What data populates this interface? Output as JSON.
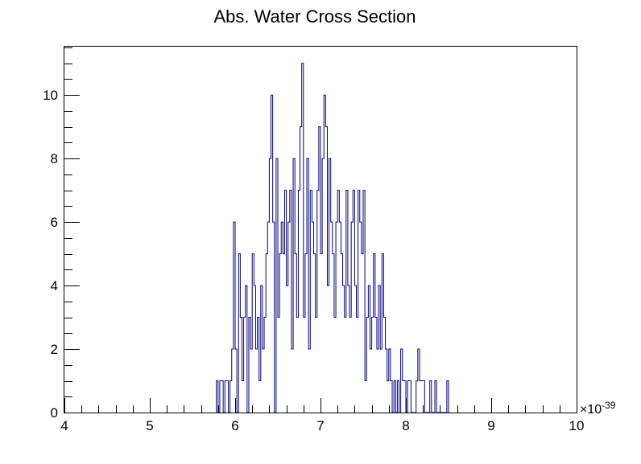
{
  "chart_data": {
    "type": "histogram",
    "title": "Abs. Water Cross Section",
    "xlabel": "",
    "ylabel": "",
    "x_multiplier_label": "×10",
    "x_multiplier_exponent": "-39",
    "xlim": [
      4,
      10
    ],
    "ylim": [
      0,
      11.55
    ],
    "x_ticks": [
      4,
      5,
      6,
      7,
      8,
      9,
      10
    ],
    "x_tick_labels": [
      "4",
      "5",
      "6",
      "7",
      "8",
      "9",
      "10"
    ],
    "y_ticks": [
      0,
      2,
      4,
      6,
      8,
      10
    ],
    "y_tick_labels": [
      "0",
      "2",
      "4",
      "6",
      "8",
      "10"
    ],
    "grid": false,
    "legend": "none",
    "line_color": "#000080",
    "bin_width": 0.02,
    "bin_start": 5.78,
    "values": [
      1,
      0,
      1,
      1,
      0,
      1,
      1,
      0,
      1,
      2,
      6,
      2,
      0,
      5,
      3,
      1,
      3,
      4,
      0,
      3,
      2,
      5,
      4,
      2,
      3,
      1,
      4,
      2,
      3,
      5,
      6,
      8,
      10,
      6,
      0,
      8,
      3,
      5,
      6,
      5,
      7,
      4,
      6,
      7,
      2,
      8,
      5,
      3,
      7,
      9,
      11,
      3,
      5,
      8,
      2,
      7,
      6,
      5,
      3,
      7,
      9,
      5,
      8,
      10,
      9,
      4,
      8,
      6,
      5,
      3,
      6,
      7,
      6,
      5,
      4,
      3,
      7,
      4,
      3,
      6,
      7,
      4,
      3,
      7,
      6,
      5,
      7,
      1,
      3,
      4,
      2,
      3,
      5,
      3,
      2,
      4,
      2,
      5,
      3,
      2,
      1,
      2,
      1,
      0,
      1,
      0,
      1,
      0,
      2,
      1,
      1,
      0,
      1,
      1,
      0,
      0,
      0,
      1,
      2,
      1,
      1,
      1,
      0,
      0,
      0,
      1,
      0,
      0,
      1,
      0,
      0,
      0,
      0,
      0,
      0,
      1
    ]
  }
}
